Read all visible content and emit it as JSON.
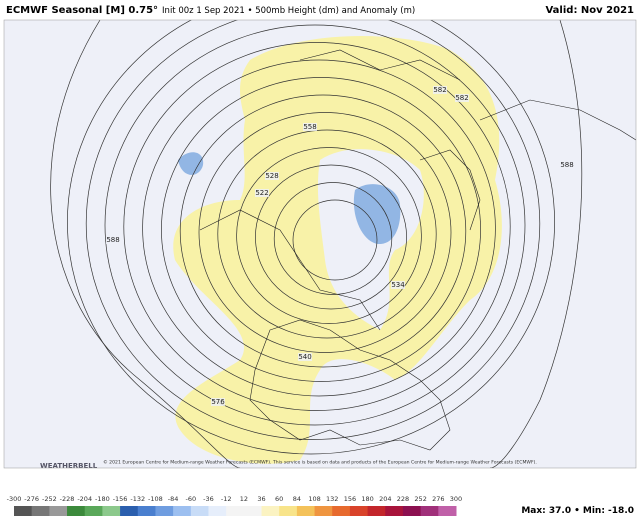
{
  "header": {
    "title": "ECMWF Seasonal [M] 0.75°",
    "subtitle": "Init 00z 1 Sep 2021 • 500mb Height (dm) and Anomaly (m)",
    "valid": "Valid: Nov 2021"
  },
  "map": {
    "contour_labels": [
      "582",
      "558",
      "528",
      "522",
      "588",
      "588",
      "540",
      "576",
      "534",
      "582"
    ]
  },
  "footer": {
    "logo": "WEATHERBELL",
    "credit": "© 2021 European Centre for Medium-range Weather Forecasts (ECMWF). This service is based on data and products of the European Centre for Medium-range Weather Forecasts (ECMWF)."
  },
  "colorbar": {
    "labels": [
      "-300",
      "-276",
      "-252",
      "-228",
      "-204",
      "-180",
      "-156",
      "-132",
      "-108",
      "-84",
      "-60",
      "-36",
      "-12",
      "12",
      "36",
      "60",
      "84",
      "108",
      "132",
      "156",
      "180",
      "204",
      "228",
      "252",
      "276",
      "300"
    ]
  },
  "stats": {
    "max": "Max: 37.0",
    "separator": "•",
    "min": "Min: -18.0"
  }
}
